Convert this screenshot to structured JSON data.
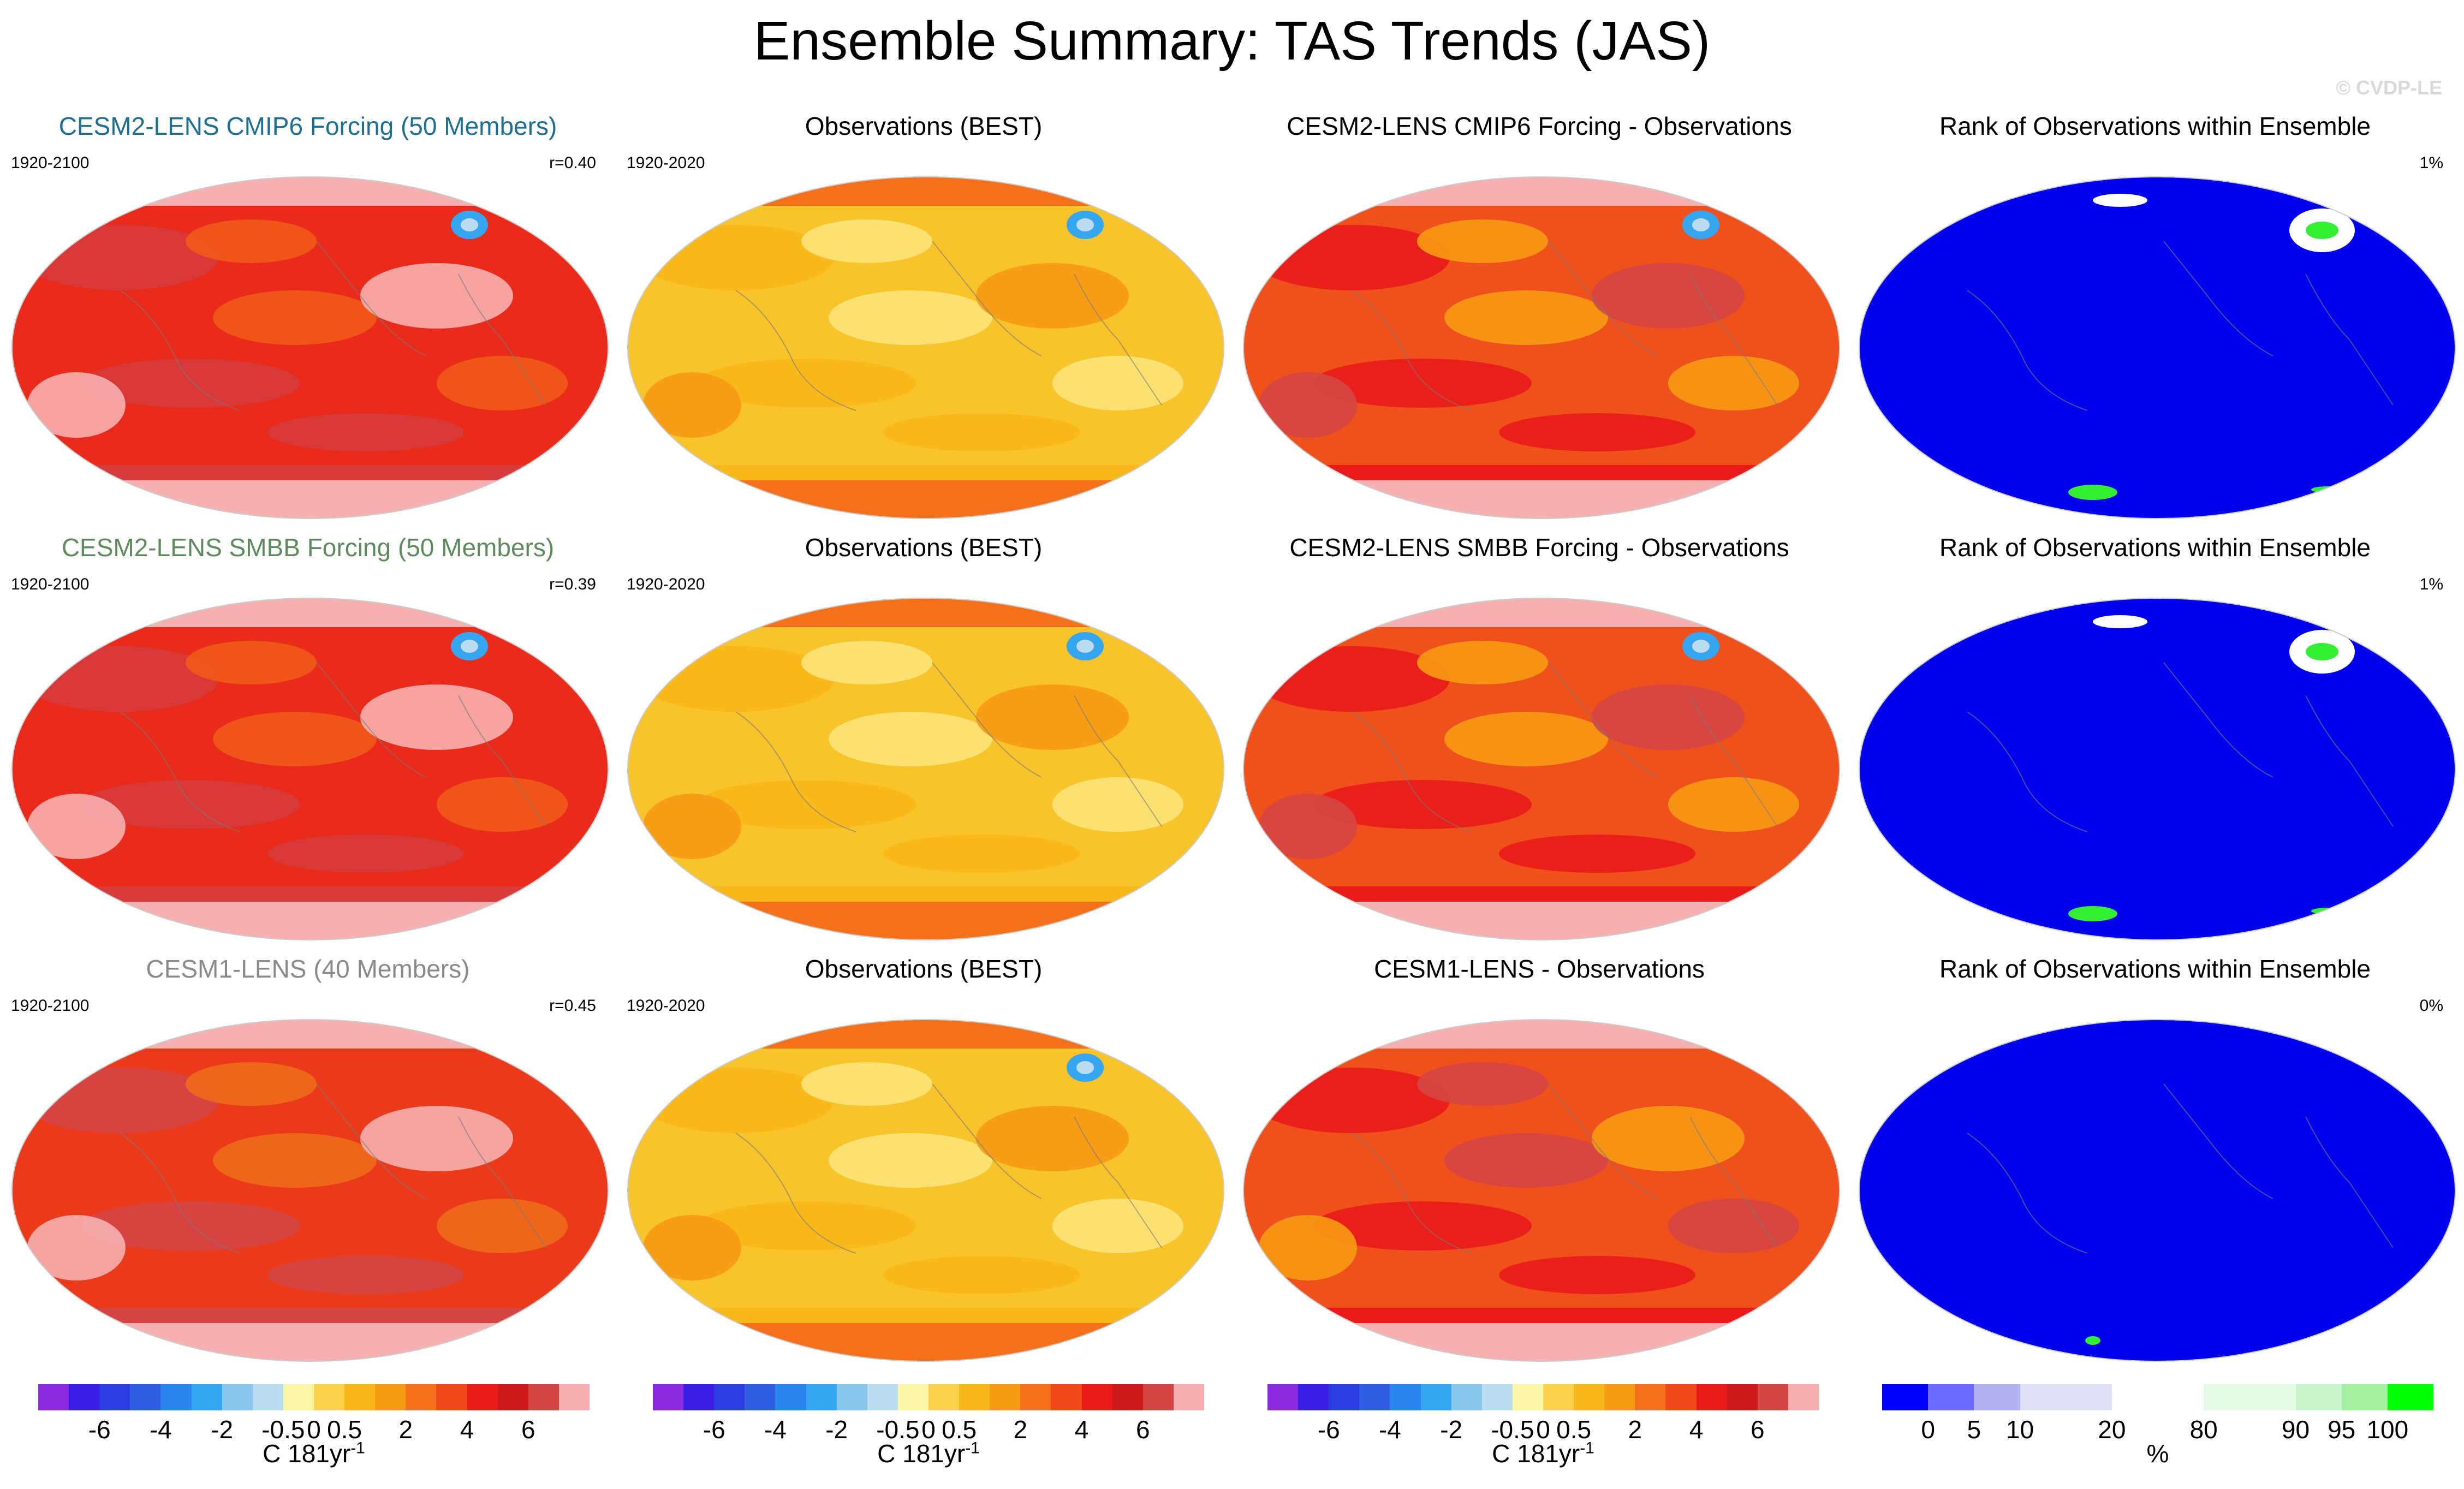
{
  "main_title": "Ensemble Summary: TAS Trends (JAS)",
  "watermark": "© CVDP-LE",
  "panels": [
    {
      "title": "CESM2-LENS CMIP6 Forcing (50 Members)",
      "title_color": "#1f6f93",
      "left": "1920-2100",
      "right": "r=0.40",
      "type": "model"
    },
    {
      "title": "Observations (BEST)",
      "title_color": "#000000",
      "left": "1920-2020",
      "right": "",
      "type": "obs"
    },
    {
      "title": "CESM2-LENS CMIP6 Forcing - Observations",
      "title_color": "#000000",
      "left": "",
      "right": "",
      "type": "diff"
    },
    {
      "title": "Rank of Observations within Ensemble",
      "title_color": "#000000",
      "left": "",
      "right": "1%",
      "type": "rank"
    },
    {
      "title": "CESM2-LENS SMBB Forcing (50 Members)",
      "title_color": "#5e8a5e",
      "left": "1920-2100",
      "right": "r=0.39",
      "type": "model"
    },
    {
      "title": "Observations (BEST)",
      "title_color": "#000000",
      "left": "1920-2020",
      "right": "",
      "type": "obs"
    },
    {
      "title": "CESM2-LENS SMBB Forcing - Observations",
      "title_color": "#000000",
      "left": "",
      "right": "",
      "type": "diff"
    },
    {
      "title": "Rank of Observations within Ensemble",
      "title_color": "#000000",
      "left": "",
      "right": "1%",
      "type": "rank"
    },
    {
      "title": "CESM1-LENS (40 Members)",
      "title_color": "#8a8a8a",
      "left": "1920-2100",
      "right": "r=0.45",
      "type": "model1"
    },
    {
      "title": "Observations (BEST)",
      "title_color": "#000000",
      "left": "1920-2020",
      "right": "",
      "type": "obs"
    },
    {
      "title": "CESM1-LENS - Observations",
      "title_color": "#000000",
      "left": "",
      "right": "",
      "type": "diff1"
    },
    {
      "title": "Rank of Observations within Ensemble",
      "title_color": "#000000",
      "left": "",
      "right": "0%",
      "type": "rank0"
    }
  ],
  "colorbars": {
    "temp": {
      "colors": [
        "#8a2be2",
        "#3a1ee6",
        "#2b3de0",
        "#2f5fe0",
        "#2a86ee",
        "#37a6f2",
        "#8ac6ee",
        "#bcdcf2",
        "#fbf7a6",
        "#f9d14b",
        "#f8b81a",
        "#f79a14",
        "#f5701a",
        "#f04a1c",
        "#ea1a1a",
        "#cc1a1a",
        "#d54545",
        "#f7b0b0"
      ],
      "labels": [
        "-6",
        "-4",
        "-2",
        "-0.5",
        "0",
        "0.5",
        "2",
        "4",
        "6"
      ],
      "label_bounds": [
        2,
        4,
        6,
        8,
        9,
        10,
        12,
        14,
        16
      ],
      "units": "C 181yr",
      "units_sup": "-1"
    },
    "rank": {
      "colors": [
        "#0000ff",
        "#6b6bff",
        "#b3b3f2",
        "#e0e0f8",
        "#e0e0f8",
        "#ffffff",
        "#ffffff",
        "#e6fbe6",
        "#e6fbe6",
        "#ccf5cc",
        "#a3f0a3",
        "#00ff00"
      ],
      "labels": [
        "0",
        "5",
        "10",
        "20",
        "80",
        "90",
        "95",
        "100"
      ],
      "label_bounds": [
        1,
        2,
        3,
        5,
        7,
        9,
        10,
        11
      ],
      "units": "%"
    }
  },
  "chart_data": [
    {
      "type": "heatmap",
      "title": "CESM2-LENS CMIP6 Forcing (50 Members)",
      "period": "1920-2100",
      "pattern_correlation": 0.4,
      "variable": "TAS trend (JAS)",
      "units": "C 181yr-1",
      "scale_levels": [
        -6,
        -4,
        -2,
        -0.5,
        0,
        0.5,
        2,
        4,
        6
      ],
      "typical_range": [
        2,
        8
      ]
    },
    {
      "type": "heatmap",
      "title": "Observations (BEST)",
      "period": "1920-2020",
      "typical_range": [
        0.5,
        2
      ]
    },
    {
      "type": "heatmap",
      "title": "CESM2-LENS CMIP6 Forcing - Observations",
      "typical_range": [
        2,
        6
      ]
    },
    {
      "type": "heatmap",
      "title": "Rank of Observations within Ensemble",
      "percent_label": "1%",
      "scale_levels": [
        0,
        5,
        10,
        20,
        80,
        90,
        95,
        100
      ]
    },
    {
      "type": "heatmap",
      "title": "CESM2-LENS SMBB Forcing (50 Members)",
      "period": "1920-2100",
      "pattern_correlation": 0.39
    },
    {
      "type": "heatmap",
      "title": "Observations (BEST)",
      "period": "1920-2020"
    },
    {
      "type": "heatmap",
      "title": "CESM2-LENS SMBB Forcing - Observations"
    },
    {
      "type": "heatmap",
      "title": "Rank of Observations within Ensemble",
      "percent_label": "1%"
    },
    {
      "type": "heatmap",
      "title": "CESM1-LENS (40 Members)",
      "period": "1920-2100",
      "pattern_correlation": 0.45
    },
    {
      "type": "heatmap",
      "title": "Observations (BEST)",
      "period": "1920-2020"
    },
    {
      "type": "heatmap",
      "title": "CESM1-LENS - Observations"
    },
    {
      "type": "heatmap",
      "title": "Rank of Observations within Ensemble",
      "percent_label": "0%"
    }
  ]
}
